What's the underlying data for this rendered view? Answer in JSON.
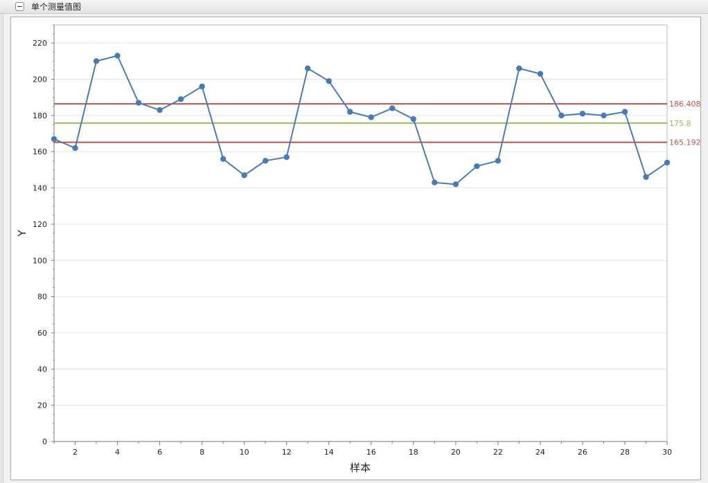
{
  "panel": {
    "title": "单个测量值图"
  },
  "chart_data": {
    "type": "line",
    "xlabel": "样本",
    "ylabel": "Y",
    "xlim": [
      1,
      30
    ],
    "ylim": [
      0,
      230
    ],
    "x_ticks": [
      2,
      4,
      6,
      8,
      10,
      12,
      14,
      16,
      18,
      20,
      22,
      24,
      26,
      28,
      30
    ],
    "y_ticks": [
      0,
      20,
      40,
      60,
      80,
      100,
      120,
      140,
      160,
      180,
      200,
      220
    ],
    "grid": true,
    "series": [
      {
        "color": "#4a7ab5",
        "x": [
          1,
          2,
          3,
          4,
          5,
          6,
          7,
          8,
          9,
          10,
          11,
          12,
          13,
          14,
          15,
          16,
          17,
          18,
          19,
          20,
          21,
          22,
          23,
          24,
          25,
          26,
          27,
          28,
          29,
          30
        ],
        "values": [
          167,
          162,
          210,
          213,
          187,
          183,
          189,
          196,
          156,
          147,
          155,
          157,
          206,
          199,
          182,
          179,
          184,
          178,
          143,
          142,
          152,
          155,
          206,
          203,
          180,
          181,
          180,
          182,
          146,
          154
        ]
      }
    ],
    "reference_lines": [
      {
        "value": 186.408,
        "label": "186.408",
        "color": "#c0504d"
      },
      {
        "value": 175.8,
        "label": "175.8",
        "color": "#9bbb59"
      },
      {
        "value": 165.192,
        "label": "165.192",
        "color": "#c0504d"
      }
    ]
  }
}
